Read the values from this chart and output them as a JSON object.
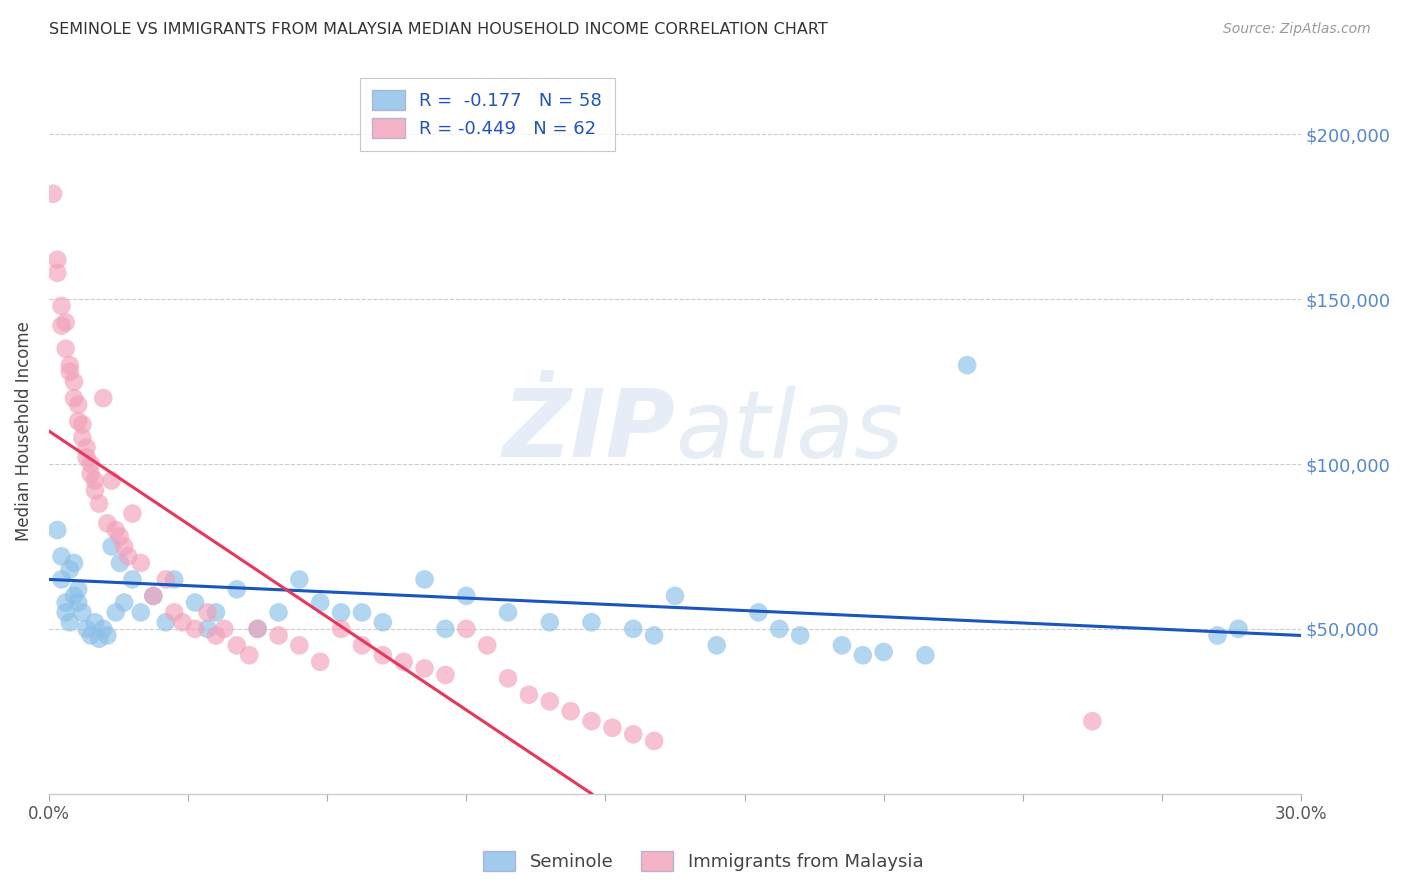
{
  "title": "SEMINOLE VS IMMIGRANTS FROM MALAYSIA MEDIAN HOUSEHOLD INCOME CORRELATION CHART",
  "source": "Source: ZipAtlas.com",
  "ylabel": "Median Household Income",
  "ylim": [
    0,
    220000
  ],
  "xlim": [
    0.0,
    0.3
  ],
  "legend_seminole": "Seminole",
  "legend_malaysia": "Immigrants from Malaysia",
  "r_seminole": "-0.177",
  "n_seminole": "58",
  "r_malaysia": "-0.449",
  "n_malaysia": "62",
  "seminole_color": "#89bfe8",
  "malaysia_color": "#f2a0b8",
  "trendline_seminole_color": "#1a56bb",
  "trendline_malaysia_color": "#e8365d",
  "background_color": "#ffffff",
  "seminole_x": [
    0.002,
    0.003,
    0.003,
    0.004,
    0.004,
    0.005,
    0.005,
    0.006,
    0.006,
    0.007,
    0.007,
    0.008,
    0.009,
    0.01,
    0.011,
    0.012,
    0.013,
    0.014,
    0.015,
    0.016,
    0.017,
    0.018,
    0.02,
    0.022,
    0.025,
    0.028,
    0.03,
    0.035,
    0.038,
    0.04,
    0.045,
    0.05,
    0.055,
    0.06,
    0.065,
    0.07,
    0.075,
    0.08,
    0.09,
    0.095,
    0.1,
    0.11,
    0.12,
    0.13,
    0.14,
    0.145,
    0.15,
    0.16,
    0.17,
    0.175,
    0.18,
    0.19,
    0.195,
    0.2,
    0.21,
    0.22,
    0.28,
    0.285
  ],
  "seminole_y": [
    80000,
    65000,
    72000,
    58000,
    55000,
    52000,
    68000,
    70000,
    60000,
    62000,
    58000,
    55000,
    50000,
    48000,
    52000,
    47000,
    50000,
    48000,
    75000,
    55000,
    70000,
    58000,
    65000,
    55000,
    60000,
    52000,
    65000,
    58000,
    50000,
    55000,
    62000,
    50000,
    55000,
    65000,
    58000,
    55000,
    55000,
    52000,
    65000,
    50000,
    60000,
    55000,
    52000,
    52000,
    50000,
    48000,
    60000,
    45000,
    55000,
    50000,
    48000,
    45000,
    42000,
    43000,
    42000,
    130000,
    48000,
    50000
  ],
  "malaysia_x": [
    0.001,
    0.002,
    0.002,
    0.003,
    0.003,
    0.004,
    0.004,
    0.005,
    0.005,
    0.006,
    0.006,
    0.007,
    0.007,
    0.008,
    0.008,
    0.009,
    0.009,
    0.01,
    0.01,
    0.011,
    0.011,
    0.012,
    0.013,
    0.014,
    0.015,
    0.016,
    0.017,
    0.018,
    0.019,
    0.02,
    0.022,
    0.025,
    0.028,
    0.03,
    0.032,
    0.035,
    0.038,
    0.04,
    0.042,
    0.045,
    0.048,
    0.05,
    0.055,
    0.06,
    0.065,
    0.07,
    0.075,
    0.08,
    0.085,
    0.09,
    0.095,
    0.1,
    0.105,
    0.11,
    0.115,
    0.12,
    0.125,
    0.13,
    0.135,
    0.14,
    0.145,
    0.25
  ],
  "malaysia_y": [
    182000,
    158000,
    162000,
    148000,
    142000,
    143000,
    135000,
    128000,
    130000,
    125000,
    120000,
    118000,
    113000,
    112000,
    108000,
    105000,
    102000,
    100000,
    97000,
    95000,
    92000,
    88000,
    120000,
    82000,
    95000,
    80000,
    78000,
    75000,
    72000,
    85000,
    70000,
    60000,
    65000,
    55000,
    52000,
    50000,
    55000,
    48000,
    50000,
    45000,
    42000,
    50000,
    48000,
    45000,
    40000,
    50000,
    45000,
    42000,
    40000,
    38000,
    36000,
    50000,
    45000,
    35000,
    30000,
    28000,
    25000,
    22000,
    20000,
    18000,
    16000,
    22000
  ],
  "sem_trend_x0": 0.0,
  "sem_trend_y0": 65000,
  "sem_trend_x1": 0.3,
  "sem_trend_y1": 48000,
  "mal_trend_x0": 0.0,
  "mal_trend_y0": 110000,
  "mal_trend_x1": 0.13,
  "mal_trend_y1": 0
}
